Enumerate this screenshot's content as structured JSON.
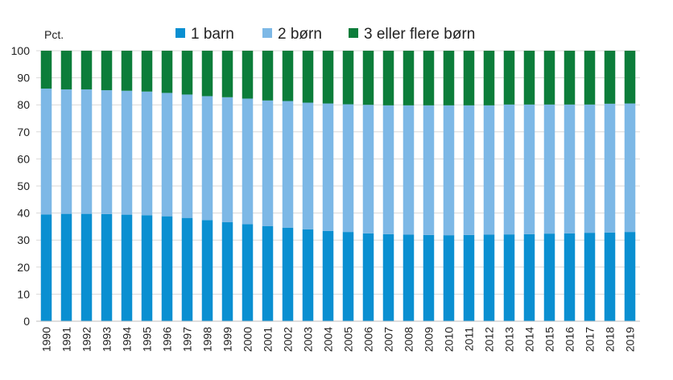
{
  "chart_data": {
    "type": "bar",
    "stacked": true,
    "unit_label": "Pct.",
    "ylim": [
      0,
      100
    ],
    "yticks": [
      0,
      10,
      20,
      30,
      40,
      50,
      60,
      70,
      80,
      90,
      100
    ],
    "grid": true,
    "legend_position": "top",
    "categories": [
      "1990",
      "1991",
      "1992",
      "1993",
      "1994",
      "1995",
      "1996",
      "1997",
      "1998",
      "1999",
      "2000",
      "2001",
      "2002",
      "2003",
      "2004",
      "2005",
      "2006",
      "2007",
      "2008",
      "2009",
      "2010",
      "2011",
      "2012",
      "2013",
      "2014",
      "2015",
      "2016",
      "2017",
      "2018",
      "2019"
    ],
    "series": [
      {
        "name": "1 barn",
        "color": "#0a8fd1",
        "values": [
          39.5,
          39.7,
          39.7,
          39.6,
          39.4,
          39.2,
          38.8,
          38.2,
          37.4,
          36.6,
          35.9,
          35.2,
          34.6,
          34.0,
          33.4,
          33.0,
          32.5,
          32.2,
          32.0,
          31.9,
          31.8,
          31.9,
          32.0,
          32.1,
          32.2,
          32.4,
          32.5,
          32.7,
          32.8,
          33.0
        ]
      },
      {
        "name": "2 børn",
        "color": "#7db8e6",
        "values": [
          46.5,
          46.0,
          46.0,
          45.8,
          45.8,
          45.7,
          45.6,
          45.6,
          45.8,
          46.2,
          46.4,
          46.4,
          46.8,
          46.8,
          47.1,
          47.2,
          47.5,
          47.6,
          47.8,
          47.9,
          48.0,
          47.9,
          47.8,
          48.0,
          47.9,
          47.7,
          47.6,
          47.4,
          47.6,
          47.5
        ]
      },
      {
        "name": "3 eller flere børn",
        "color": "#0c7d3a",
        "values": [
          14.0,
          14.3,
          14.3,
          14.6,
          14.8,
          15.1,
          15.6,
          16.2,
          16.8,
          17.2,
          17.7,
          18.4,
          18.6,
          19.2,
          19.5,
          19.8,
          20.0,
          20.2,
          20.2,
          20.2,
          20.2,
          20.2,
          20.2,
          19.9,
          19.9,
          19.9,
          19.9,
          19.9,
          19.6,
          19.5
        ]
      }
    ]
  }
}
